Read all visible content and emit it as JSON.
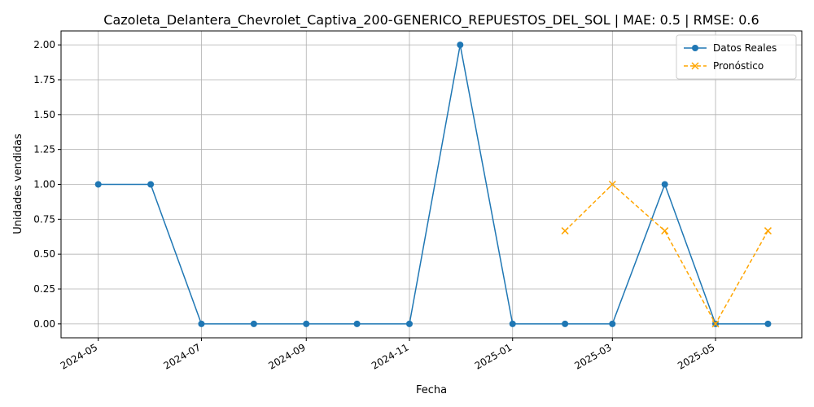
{
  "chart_data": {
    "type": "line",
    "title": "Cazoleta_Delantera_Chevrolet_Captiva_200-GENERICO_REPUESTOS_DEL_SOL | MAE: 0.5 | RMSE: 0.6",
    "xlabel": "Fecha",
    "ylabel": "Unidades vendidas",
    "xlim": [
      "2024-04-09",
      "2025-06-21"
    ],
    "ylim": [
      -0.1,
      2.1
    ],
    "x_ticks": [
      "2024-05-01",
      "2024-07-01",
      "2024-09-01",
      "2024-11-01",
      "2025-01-01",
      "2025-03-01",
      "2025-05-01"
    ],
    "x_tick_labels": [
      "2024-05",
      "2024-07",
      "2024-09",
      "2024-11",
      "2025-01",
      "2025-03",
      "2025-05"
    ],
    "y_ticks": [
      0,
      0.25,
      0.5,
      0.75,
      1.0,
      1.25,
      1.5,
      1.75,
      2.0
    ],
    "y_tick_labels": [
      "0.00",
      "0.25",
      "0.50",
      "0.75",
      "1.00",
      "1.25",
      "1.50",
      "1.75",
      "2.00"
    ],
    "grid": true,
    "legend_position": "top-right",
    "series": [
      {
        "name": "Datos Reales",
        "color": "#1f77b4",
        "line_style": "solid",
        "marker": "circle",
        "x": [
          "2024-05-01",
          "2024-06-01",
          "2024-07-01",
          "2024-08-01",
          "2024-09-01",
          "2024-10-01",
          "2024-11-01",
          "2024-12-01",
          "2025-01-01",
          "2025-02-01",
          "2025-03-01",
          "2025-04-01",
          "2025-05-01",
          "2025-06-01"
        ],
        "values": [
          1,
          1,
          0,
          0,
          0,
          0,
          0,
          2,
          0,
          0,
          0,
          1,
          0,
          0
        ]
      },
      {
        "name": "Pronóstico",
        "color": "#ffa500",
        "line_style": "dashed",
        "marker": "x",
        "x": [
          "2025-02-01",
          "2025-03-01",
          "2025-04-01",
          "2025-05-01",
          "2025-06-01"
        ],
        "values": [
          0.667,
          1.0,
          0.667,
          0.0,
          0.667
        ]
      }
    ]
  }
}
